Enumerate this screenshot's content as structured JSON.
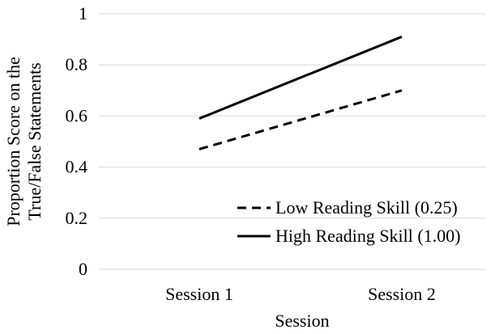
{
  "chart_data": {
    "type": "line",
    "xlabel": "Session",
    "ylabel_lines": [
      "Proportion Score on the",
      "True/False Statements"
    ],
    "categories": [
      "Session 1",
      "Session 2"
    ],
    "ylim": [
      0,
      1
    ],
    "yticks": [
      0,
      0.2,
      0.4,
      0.6,
      0.8,
      1
    ],
    "ytick_labels": [
      "0",
      "0.2",
      "0.4",
      "0.6",
      "0.8",
      "1"
    ],
    "grid": true,
    "legend_position": "bottom-right",
    "series": [
      {
        "name": "Low Reading Skill (0.25)",
        "values": [
          0.47,
          0.7
        ],
        "style": "dashed",
        "color": "#000000"
      },
      {
        "name": "High Reading Skill (1.00)",
        "values": [
          0.59,
          0.91
        ],
        "style": "solid",
        "color": "#000000"
      }
    ]
  }
}
